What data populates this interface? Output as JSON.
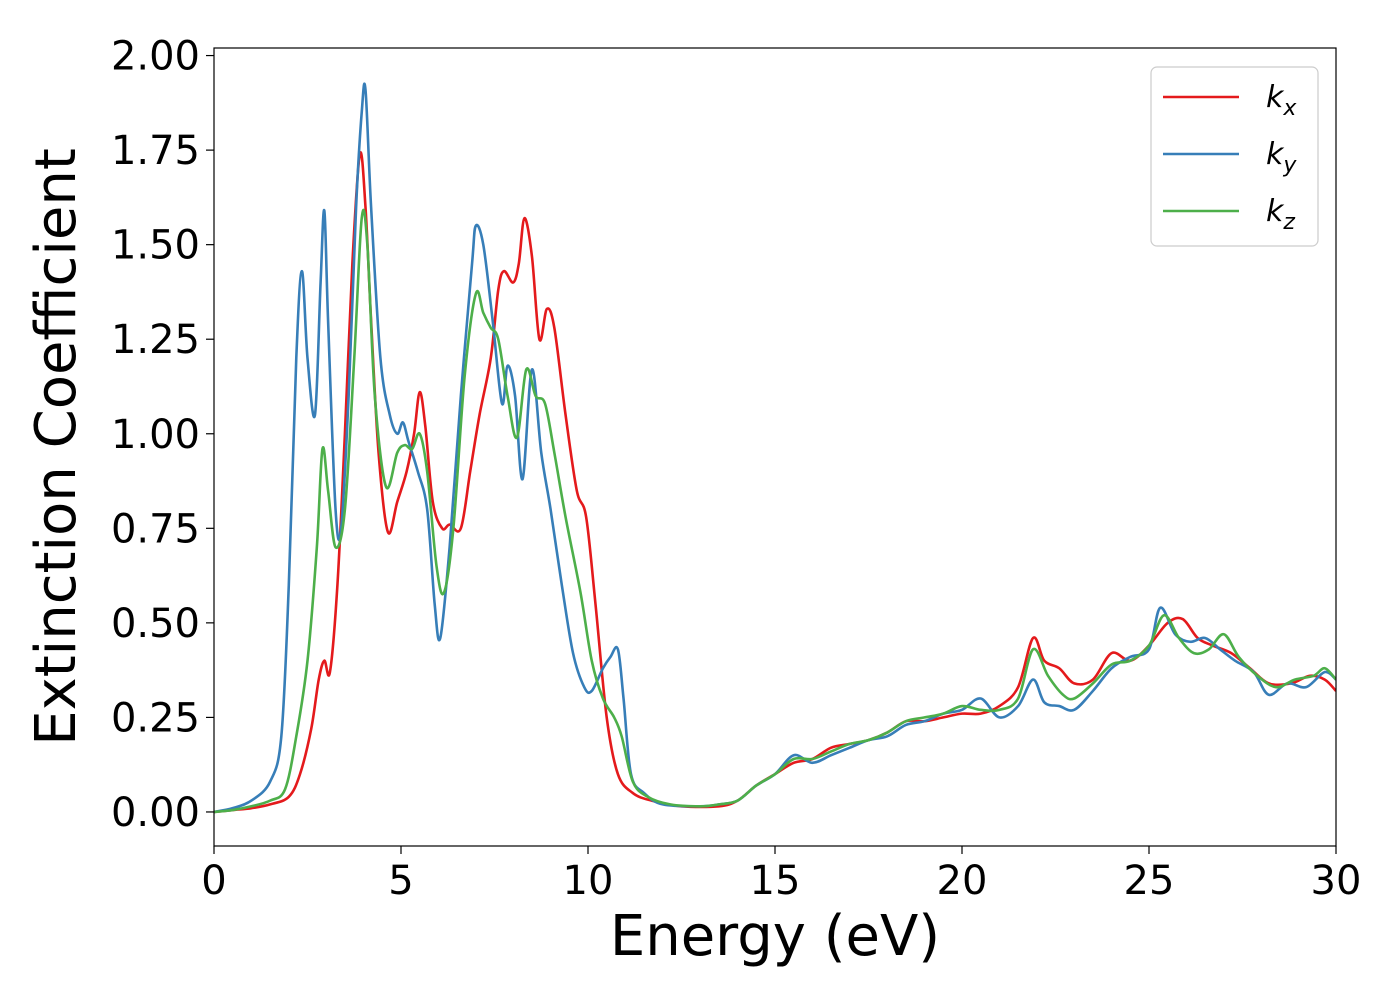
{
  "chart_data": {
    "type": "line",
    "xlabel": "Energy (eV)",
    "ylabel": "Extinction Coefficient",
    "xlim": [
      0,
      30
    ],
    "ylim": [
      -0.09,
      2.02
    ],
    "xticks": [
      0,
      5,
      10,
      15,
      20,
      25,
      30
    ],
    "xtick_labels": [
      "0",
      "5",
      "10",
      "15",
      "20",
      "25",
      "30"
    ],
    "yticks": [
      0,
      0.25,
      0.5,
      0.75,
      1.0,
      1.25,
      1.5,
      1.75,
      2.0
    ],
    "ytick_labels": [
      "0.00",
      "0.25",
      "0.50",
      "0.75",
      "1.00",
      "1.25",
      "1.50",
      "1.75",
      "2.00"
    ],
    "grid": false,
    "legend_position": "top-right",
    "series": [
      {
        "name": "k",
        "subscript": "x",
        "color": "#e41a1c",
        "points": [
          [
            0,
            0
          ],
          [
            0.5,
            0.005
          ],
          [
            1,
            0.01
          ],
          [
            1.5,
            0.02
          ],
          [
            2,
            0.04
          ],
          [
            2.3,
            0.1
          ],
          [
            2.6,
            0.22
          ],
          [
            2.8,
            0.35
          ],
          [
            2.95,
            0.4
          ],
          [
            3.1,
            0.37
          ],
          [
            3.3,
            0.6
          ],
          [
            3.5,
            1.0
          ],
          [
            3.7,
            1.45
          ],
          [
            3.9,
            1.74
          ],
          [
            4.05,
            1.6
          ],
          [
            4.2,
            1.3
          ],
          [
            4.4,
            0.95
          ],
          [
            4.65,
            0.74
          ],
          [
            4.9,
            0.82
          ],
          [
            5.15,
            0.9
          ],
          [
            5.35,
            1.0
          ],
          [
            5.5,
            1.11
          ],
          [
            5.65,
            1.02
          ],
          [
            5.85,
            0.82
          ],
          [
            6.1,
            0.75
          ],
          [
            6.3,
            0.76
          ],
          [
            6.6,
            0.75
          ],
          [
            6.85,
            0.9
          ],
          [
            7.1,
            1.05
          ],
          [
            7.4,
            1.2
          ],
          [
            7.6,
            1.38
          ],
          [
            7.75,
            1.43
          ],
          [
            8.0,
            1.4
          ],
          [
            8.15,
            1.45
          ],
          [
            8.3,
            1.57
          ],
          [
            8.5,
            1.47
          ],
          [
            8.7,
            1.25
          ],
          [
            8.9,
            1.33
          ],
          [
            9.1,
            1.28
          ],
          [
            9.4,
            1.05
          ],
          [
            9.7,
            0.85
          ],
          [
            9.95,
            0.78
          ],
          [
            10.2,
            0.55
          ],
          [
            10.5,
            0.25
          ],
          [
            10.8,
            0.1
          ],
          [
            11.2,
            0.05
          ],
          [
            11.7,
            0.03
          ],
          [
            12.5,
            0.015
          ],
          [
            13.5,
            0.015
          ],
          [
            14,
            0.03
          ],
          [
            14.5,
            0.07
          ],
          [
            15,
            0.1
          ],
          [
            15.5,
            0.13
          ],
          [
            16,
            0.14
          ],
          [
            16.5,
            0.17
          ],
          [
            17,
            0.18
          ],
          [
            17.5,
            0.19
          ],
          [
            18,
            0.21
          ],
          [
            18.5,
            0.24
          ],
          [
            19,
            0.24
          ],
          [
            19.5,
            0.25
          ],
          [
            20,
            0.26
          ],
          [
            20.5,
            0.26
          ],
          [
            21,
            0.28
          ],
          [
            21.5,
            0.33
          ],
          [
            21.9,
            0.46
          ],
          [
            22.2,
            0.4
          ],
          [
            22.6,
            0.38
          ],
          [
            23,
            0.34
          ],
          [
            23.5,
            0.35
          ],
          [
            24,
            0.42
          ],
          [
            24.5,
            0.4
          ],
          [
            25,
            0.44
          ],
          [
            25.5,
            0.5
          ],
          [
            25.9,
            0.51
          ],
          [
            26.3,
            0.46
          ],
          [
            26.7,
            0.44
          ],
          [
            27.2,
            0.42
          ],
          [
            27.7,
            0.38
          ],
          [
            28.2,
            0.34
          ],
          [
            28.8,
            0.34
          ],
          [
            29.3,
            0.36
          ],
          [
            29.7,
            0.35
          ],
          [
            30,
            0.32
          ]
        ]
      },
      {
        "name": "k",
        "subscript": "y",
        "color": "#377eb8",
        "points": [
          [
            0,
            0
          ],
          [
            0.5,
            0.01
          ],
          [
            1,
            0.03
          ],
          [
            1.5,
            0.08
          ],
          [
            1.8,
            0.2
          ],
          [
            2.0,
            0.6
          ],
          [
            2.2,
            1.2
          ],
          [
            2.35,
            1.43
          ],
          [
            2.5,
            1.2
          ],
          [
            2.7,
            1.05
          ],
          [
            2.85,
            1.4
          ],
          [
            2.95,
            1.59
          ],
          [
            3.05,
            1.3
          ],
          [
            3.25,
            0.8
          ],
          [
            3.4,
            0.75
          ],
          [
            3.6,
            1.1
          ],
          [
            3.8,
            1.6
          ],
          [
            3.95,
            1.85
          ],
          [
            4.05,
            1.91
          ],
          [
            4.2,
            1.6
          ],
          [
            4.45,
            1.2
          ],
          [
            4.7,
            1.05
          ],
          [
            4.9,
            1.0
          ],
          [
            5.05,
            1.03
          ],
          [
            5.2,
            0.98
          ],
          [
            5.45,
            0.9
          ],
          [
            5.7,
            0.8
          ],
          [
            5.9,
            0.55
          ],
          [
            6.05,
            0.46
          ],
          [
            6.3,
            0.7
          ],
          [
            6.6,
            1.1
          ],
          [
            6.9,
            1.45
          ],
          [
            7.0,
            1.55
          ],
          [
            7.2,
            1.5
          ],
          [
            7.45,
            1.3
          ],
          [
            7.7,
            1.08
          ],
          [
            7.85,
            1.18
          ],
          [
            8.05,
            1.1
          ],
          [
            8.25,
            0.88
          ],
          [
            8.5,
            1.17
          ],
          [
            8.75,
            0.95
          ],
          [
            9.0,
            0.8
          ],
          [
            9.3,
            0.6
          ],
          [
            9.6,
            0.42
          ],
          [
            9.9,
            0.33
          ],
          [
            10.1,
            0.32
          ],
          [
            10.4,
            0.38
          ],
          [
            10.6,
            0.41
          ],
          [
            10.8,
            0.43
          ],
          [
            10.95,
            0.3
          ],
          [
            11.15,
            0.1
          ],
          [
            11.5,
            0.05
          ],
          [
            12,
            0.02
          ],
          [
            13,
            0.015
          ],
          [
            13.5,
            0.02
          ],
          [
            14,
            0.03
          ],
          [
            14.5,
            0.07
          ],
          [
            15,
            0.1
          ],
          [
            15.5,
            0.15
          ],
          [
            16,
            0.13
          ],
          [
            16.5,
            0.15
          ],
          [
            17,
            0.17
          ],
          [
            17.5,
            0.19
          ],
          [
            18,
            0.2
          ],
          [
            18.5,
            0.23
          ],
          [
            19,
            0.24
          ],
          [
            19.5,
            0.26
          ],
          [
            20,
            0.27
          ],
          [
            20.5,
            0.3
          ],
          [
            21,
            0.25
          ],
          [
            21.5,
            0.28
          ],
          [
            21.9,
            0.35
          ],
          [
            22.2,
            0.29
          ],
          [
            22.6,
            0.28
          ],
          [
            23,
            0.27
          ],
          [
            23.5,
            0.32
          ],
          [
            24,
            0.38
          ],
          [
            24.5,
            0.41
          ],
          [
            25,
            0.43
          ],
          [
            25.3,
            0.54
          ],
          [
            25.7,
            0.47
          ],
          [
            26.1,
            0.45
          ],
          [
            26.5,
            0.46
          ],
          [
            26.9,
            0.43
          ],
          [
            27.3,
            0.4
          ],
          [
            27.8,
            0.37
          ],
          [
            28.2,
            0.31
          ],
          [
            28.7,
            0.34
          ],
          [
            29.2,
            0.33
          ],
          [
            29.7,
            0.37
          ],
          [
            30,
            0.35
          ]
        ]
      },
      {
        "name": "k",
        "subscript": "z",
        "color": "#4daf4a",
        "points": [
          [
            0,
            0
          ],
          [
            0.5,
            0.005
          ],
          [
            1,
            0.015
          ],
          [
            1.5,
            0.03
          ],
          [
            1.9,
            0.06
          ],
          [
            2.2,
            0.2
          ],
          [
            2.5,
            0.4
          ],
          [
            2.75,
            0.7
          ],
          [
            2.9,
            0.96
          ],
          [
            3.05,
            0.85
          ],
          [
            3.25,
            0.7
          ],
          [
            3.5,
            0.8
          ],
          [
            3.75,
            1.2
          ],
          [
            3.95,
            1.57
          ],
          [
            4.1,
            1.5
          ],
          [
            4.3,
            1.1
          ],
          [
            4.6,
            0.86
          ],
          [
            4.9,
            0.95
          ],
          [
            5.1,
            0.97
          ],
          [
            5.3,
            0.96
          ],
          [
            5.5,
            1.0
          ],
          [
            5.7,
            0.9
          ],
          [
            5.95,
            0.65
          ],
          [
            6.15,
            0.58
          ],
          [
            6.4,
            0.75
          ],
          [
            6.7,
            1.15
          ],
          [
            7.0,
            1.37
          ],
          [
            7.2,
            1.32
          ],
          [
            7.4,
            1.28
          ],
          [
            7.6,
            1.25
          ],
          [
            7.85,
            1.1
          ],
          [
            8.1,
            0.99
          ],
          [
            8.35,
            1.17
          ],
          [
            8.6,
            1.1
          ],
          [
            8.85,
            1.08
          ],
          [
            9.1,
            0.95
          ],
          [
            9.4,
            0.78
          ],
          [
            9.8,
            0.58
          ],
          [
            10.1,
            0.4
          ],
          [
            10.4,
            0.3
          ],
          [
            10.7,
            0.25
          ],
          [
            10.9,
            0.2
          ],
          [
            11.2,
            0.08
          ],
          [
            11.6,
            0.04
          ],
          [
            12.2,
            0.02
          ],
          [
            13,
            0.015
          ],
          [
            13.5,
            0.02
          ],
          [
            14,
            0.03
          ],
          [
            14.5,
            0.07
          ],
          [
            15,
            0.1
          ],
          [
            15.5,
            0.14
          ],
          [
            16,
            0.14
          ],
          [
            16.5,
            0.16
          ],
          [
            17,
            0.18
          ],
          [
            17.5,
            0.19
          ],
          [
            18,
            0.21
          ],
          [
            18.5,
            0.24
          ],
          [
            19,
            0.25
          ],
          [
            19.5,
            0.26
          ],
          [
            20,
            0.28
          ],
          [
            20.5,
            0.27
          ],
          [
            21,
            0.27
          ],
          [
            21.5,
            0.3
          ],
          [
            21.9,
            0.43
          ],
          [
            22.3,
            0.36
          ],
          [
            22.7,
            0.31
          ],
          [
            23,
            0.3
          ],
          [
            23.5,
            0.34
          ],
          [
            24,
            0.39
          ],
          [
            24.5,
            0.4
          ],
          [
            25,
            0.44
          ],
          [
            25.4,
            0.52
          ],
          [
            25.8,
            0.46
          ],
          [
            26.2,
            0.42
          ],
          [
            26.6,
            0.43
          ],
          [
            27,
            0.47
          ],
          [
            27.4,
            0.41
          ],
          [
            27.9,
            0.36
          ],
          [
            28.4,
            0.33
          ],
          [
            28.9,
            0.35
          ],
          [
            29.4,
            0.36
          ],
          [
            29.7,
            0.38
          ],
          [
            30,
            0.35
          ]
        ]
      }
    ]
  }
}
